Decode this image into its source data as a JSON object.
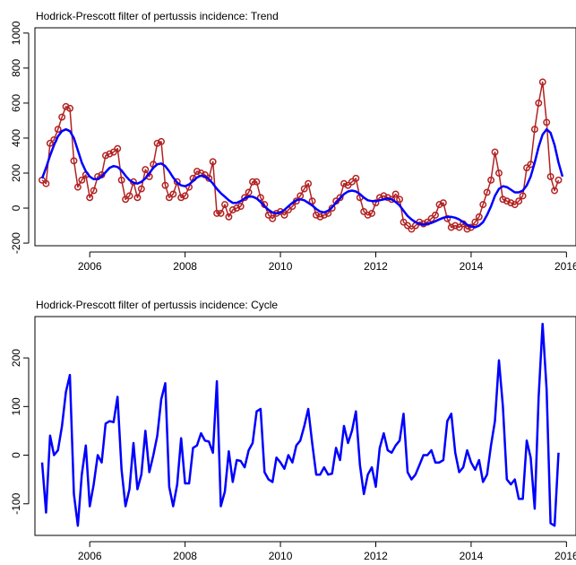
{
  "chart_data": [
    {
      "type": "line",
      "title": "Hodrick-Prescott filter of pertussis incidence: Trend",
      "xlabel": "",
      "ylabel": "",
      "xlim": [
        2004.85,
        2016.2
      ],
      "ylim": [
        -215,
        1030
      ],
      "xticks": [
        2006,
        2008,
        2010,
        2012,
        2014,
        2016
      ],
      "yticks": [
        -200,
        0,
        200,
        400,
        600,
        800,
        1000
      ],
      "x_start": 2005.0,
      "x_step_months": 1,
      "grid": false,
      "series": [
        {
          "color": "#b22222",
          "marker": "circle",
          "values": [
            160,
            140,
            370,
            390,
            450,
            520,
            580,
            570,
            270,
            120,
            160,
            190,
            60,
            100,
            180,
            190,
            300,
            310,
            320,
            340,
            160,
            50,
            70,
            150,
            60,
            110,
            220,
            180,
            250,
            370,
            380,
            130,
            60,
            80,
            150,
            60,
            70,
            120,
            170,
            210,
            200,
            190,
            170,
            265,
            -30,
            -30,
            20,
            -50,
            -10,
            0,
            10,
            60,
            90,
            150,
            150,
            60,
            20,
            -40,
            -60,
            -30,
            -20,
            -40,
            -10,
            10,
            40,
            70,
            110,
            140,
            40,
            -40,
            -50,
            -40,
            -30,
            0,
            40,
            60,
            140,
            130,
            150,
            170,
            60,
            -20,
            -40,
            -30,
            30,
            60,
            70,
            60,
            50,
            80,
            50,
            -80,
            -100,
            -120,
            -100,
            -80,
            -90,
            -80,
            -60,
            -40,
            20,
            30,
            -60,
            -110,
            -100,
            -110,
            -90,
            -120,
            -110,
            -80,
            -50,
            20,
            90,
            160,
            320,
            200,
            50,
            40,
            30,
            20,
            40,
            70,
            230,
            250,
            450,
            600,
            720,
            490,
            180,
            100,
            160
          ]
        },
        {
          "color": "#0000ff",
          "marker": "none",
          "values": [
            170,
            230,
            300,
            360,
            410,
            440,
            450,
            440,
            400,
            330,
            260,
            210,
            180,
            165,
            165,
            180,
            205,
            230,
            240,
            235,
            215,
            185,
            160,
            145,
            140,
            150,
            170,
            200,
            230,
            250,
            255,
            240,
            210,
            175,
            145,
            130,
            125,
            135,
            155,
            175,
            185,
            180,
            165,
            140,
            110,
            85,
            65,
            45,
            30,
            30,
            40,
            55,
            65,
            65,
            55,
            35,
            10,
            -10,
            -25,
            -30,
            -25,
            -10,
            10,
            30,
            45,
            50,
            45,
            30,
            15,
            -5,
            -20,
            -25,
            -15,
            5,
            30,
            55,
            80,
            95,
            100,
            95,
            80,
            60,
            45,
            40,
            40,
            45,
            50,
            55,
            50,
            35,
            15,
            -15,
            -45,
            -65,
            -80,
            -90,
            -95,
            -90,
            -85,
            -75,
            -65,
            -55,
            -50,
            -50,
            -55,
            -65,
            -80,
            -95,
            -105,
            -110,
            -100,
            -80,
            -40,
            10,
            70,
            110,
            125,
            120,
            105,
            90,
            90,
            100,
            130,
            180,
            260,
            350,
            420,
            450,
            430,
            360,
            260,
            180
          ]
        }
      ]
    },
    {
      "type": "line",
      "title": "Hodrick-Prescott filter of pertussis incidence: Cycle",
      "xlabel": "",
      "ylabel": "",
      "xlim": [
        2004.85,
        2016.2
      ],
      "ylim": [
        -165,
        285
      ],
      "xticks": [
        2006,
        2008,
        2010,
        2012,
        2014,
        2016
      ],
      "yticks": [
        -100,
        0,
        100,
        200
      ],
      "x_start": 2005.0,
      "x_step_months": 1,
      "grid": false,
      "series": [
        {
          "color": "#0000ff",
          "marker": "none",
          "values": [
            -15,
            -118,
            40,
            0,
            10,
            60,
            130,
            165,
            -80,
            -145,
            -40,
            20,
            -105,
            -60,
            0,
            -15,
            65,
            70,
            68,
            120,
            -30,
            -105,
            -70,
            25,
            -70,
            -40,
            50,
            -35,
            0,
            40,
            115,
            148,
            -65,
            -105,
            -60,
            35,
            -58,
            -58,
            15,
            20,
            45,
            30,
            28,
            5,
            152,
            -105,
            -75,
            8,
            -55,
            -10,
            -12,
            -25,
            10,
            25,
            90,
            95,
            -35,
            -50,
            -55,
            -5,
            -15,
            -28,
            0,
            -15,
            20,
            30,
            60,
            95,
            25,
            -40,
            -40,
            -25,
            -40,
            -38,
            15,
            -10,
            60,
            25,
            50,
            90,
            -20,
            -80,
            -40,
            -25,
            -65,
            15,
            45,
            10,
            5,
            20,
            30,
            85,
            -35,
            -50,
            -40,
            -20,
            0,
            0,
            10,
            -15,
            -15,
            -10,
            70,
            85,
            5,
            -35,
            -25,
            10,
            -15,
            -30,
            -10,
            -55,
            -40,
            20,
            70,
            195,
            100,
            -50,
            -60,
            -50,
            -90,
            -90,
            30,
            -5,
            -110,
            120,
            270,
            135,
            -140,
            -145,
            5
          ]
        }
      ]
    }
  ]
}
